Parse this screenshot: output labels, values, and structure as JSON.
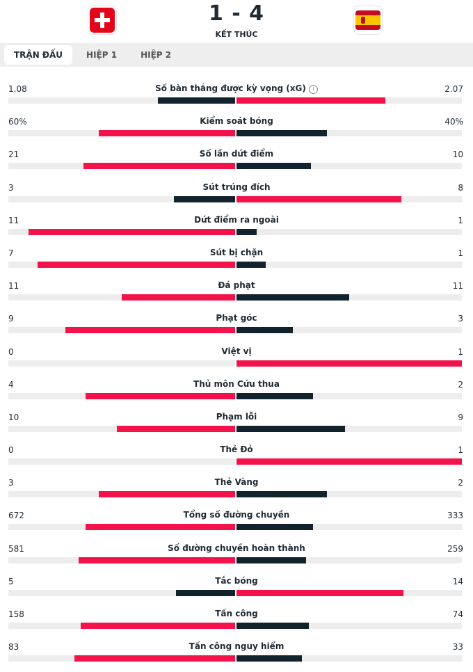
{
  "match": {
    "score": "1 - 4",
    "status": "KẾT THÚC",
    "home_flag_icon": "switzerland-flag-icon",
    "away_flag_icon": "spain-flag-icon"
  },
  "tabs": [
    {
      "label": "TRẬN ĐẤU",
      "active": true
    },
    {
      "label": "HIỆP 1",
      "active": false
    },
    {
      "label": "HIỆP 2",
      "active": false
    }
  ],
  "colors": {
    "red": "#f3134a",
    "dark": "#13232d",
    "track": "#ededed"
  },
  "stats": [
    {
      "label": "Số bàn thắng được kỳ vọng (xG)",
      "home": "1.08",
      "away": "2.07",
      "home_val": 1.08,
      "away_val": 2.07,
      "info": true,
      "home_share": 0.34,
      "away_share": 0.66,
      "leader": "away"
    },
    {
      "label": "Kiểm soát bóng",
      "home": "60%",
      "away": "40%",
      "home_val": 60,
      "away_val": 40,
      "home_share": 0.6,
      "away_share": 0.4,
      "leader": "home"
    },
    {
      "label": "Số lần dứt điểm",
      "home": "21",
      "away": "10",
      "home_val": 21,
      "away_val": 10,
      "home_share": 0.67,
      "away_share": 0.33,
      "leader": "home"
    },
    {
      "label": "Sút trúng đích",
      "home": "3",
      "away": "8",
      "home_val": 3,
      "away_val": 8,
      "home_share": 0.27,
      "away_share": 0.73,
      "leader": "away"
    },
    {
      "label": "Dứt điểm ra ngoài",
      "home": "11",
      "away": "1",
      "home_val": 11,
      "away_val": 1,
      "home_share": 0.91,
      "away_share": 0.09,
      "leader": "home"
    },
    {
      "label": "Sút bị chặn",
      "home": "7",
      "away": "1",
      "home_val": 7,
      "away_val": 1,
      "home_share": 0.87,
      "away_share": 0.13,
      "leader": "home"
    },
    {
      "label": "Đá phạt",
      "home": "11",
      "away": "11",
      "home_val": 11,
      "away_val": 11,
      "home_share": 0.5,
      "away_share": 0.5,
      "leader": "none"
    },
    {
      "label": "Phạt góc",
      "home": "9",
      "away": "3",
      "home_val": 9,
      "away_val": 3,
      "home_share": 0.75,
      "away_share": 0.25,
      "leader": "home"
    },
    {
      "label": "Việt vị",
      "home": "0",
      "away": "1",
      "home_val": 0,
      "away_val": 1,
      "home_share": 0.0,
      "away_share": 1.0,
      "leader": "away"
    },
    {
      "label": "Thủ môn Cứu thua",
      "home": "4",
      "away": "2",
      "home_val": 4,
      "away_val": 2,
      "home_share": 0.66,
      "away_share": 0.34,
      "leader": "home"
    },
    {
      "label": "Phạm lỗi",
      "home": "10",
      "away": "9",
      "home_val": 10,
      "away_val": 9,
      "home_share": 0.52,
      "away_share": 0.48,
      "leader": "home"
    },
    {
      "label": "Thẻ Đỏ",
      "home": "0",
      "away": "1",
      "home_val": 0,
      "away_val": 1,
      "home_share": 0.0,
      "away_share": 1.0,
      "leader": "away"
    },
    {
      "label": "Thẻ Vàng",
      "home": "3",
      "away": "2",
      "home_val": 3,
      "away_val": 2,
      "home_share": 0.6,
      "away_share": 0.4,
      "leader": "home"
    },
    {
      "label": "Tổng số đường chuyền",
      "home": "672",
      "away": "333",
      "home_val": 672,
      "away_val": 333,
      "home_share": 0.66,
      "away_share": 0.34,
      "leader": "home"
    },
    {
      "label": "Số đường chuyền hoàn thành",
      "home": "581",
      "away": "259",
      "home_val": 581,
      "away_val": 259,
      "home_share": 0.69,
      "away_share": 0.31,
      "leader": "home"
    },
    {
      "label": "Tắc bóng",
      "home": "5",
      "away": "14",
      "home_val": 5,
      "away_val": 14,
      "home_share": 0.26,
      "away_share": 0.74,
      "leader": "away"
    },
    {
      "label": "Tấn công",
      "home": "158",
      "away": "74",
      "home_val": 158,
      "away_val": 74,
      "home_share": 0.68,
      "away_share": 0.32,
      "leader": "home"
    },
    {
      "label": "Tấn công nguy hiểm",
      "home": "83",
      "away": "33",
      "home_val": 83,
      "away_val": 33,
      "home_share": 0.71,
      "away_share": 0.29,
      "leader": "home"
    }
  ]
}
